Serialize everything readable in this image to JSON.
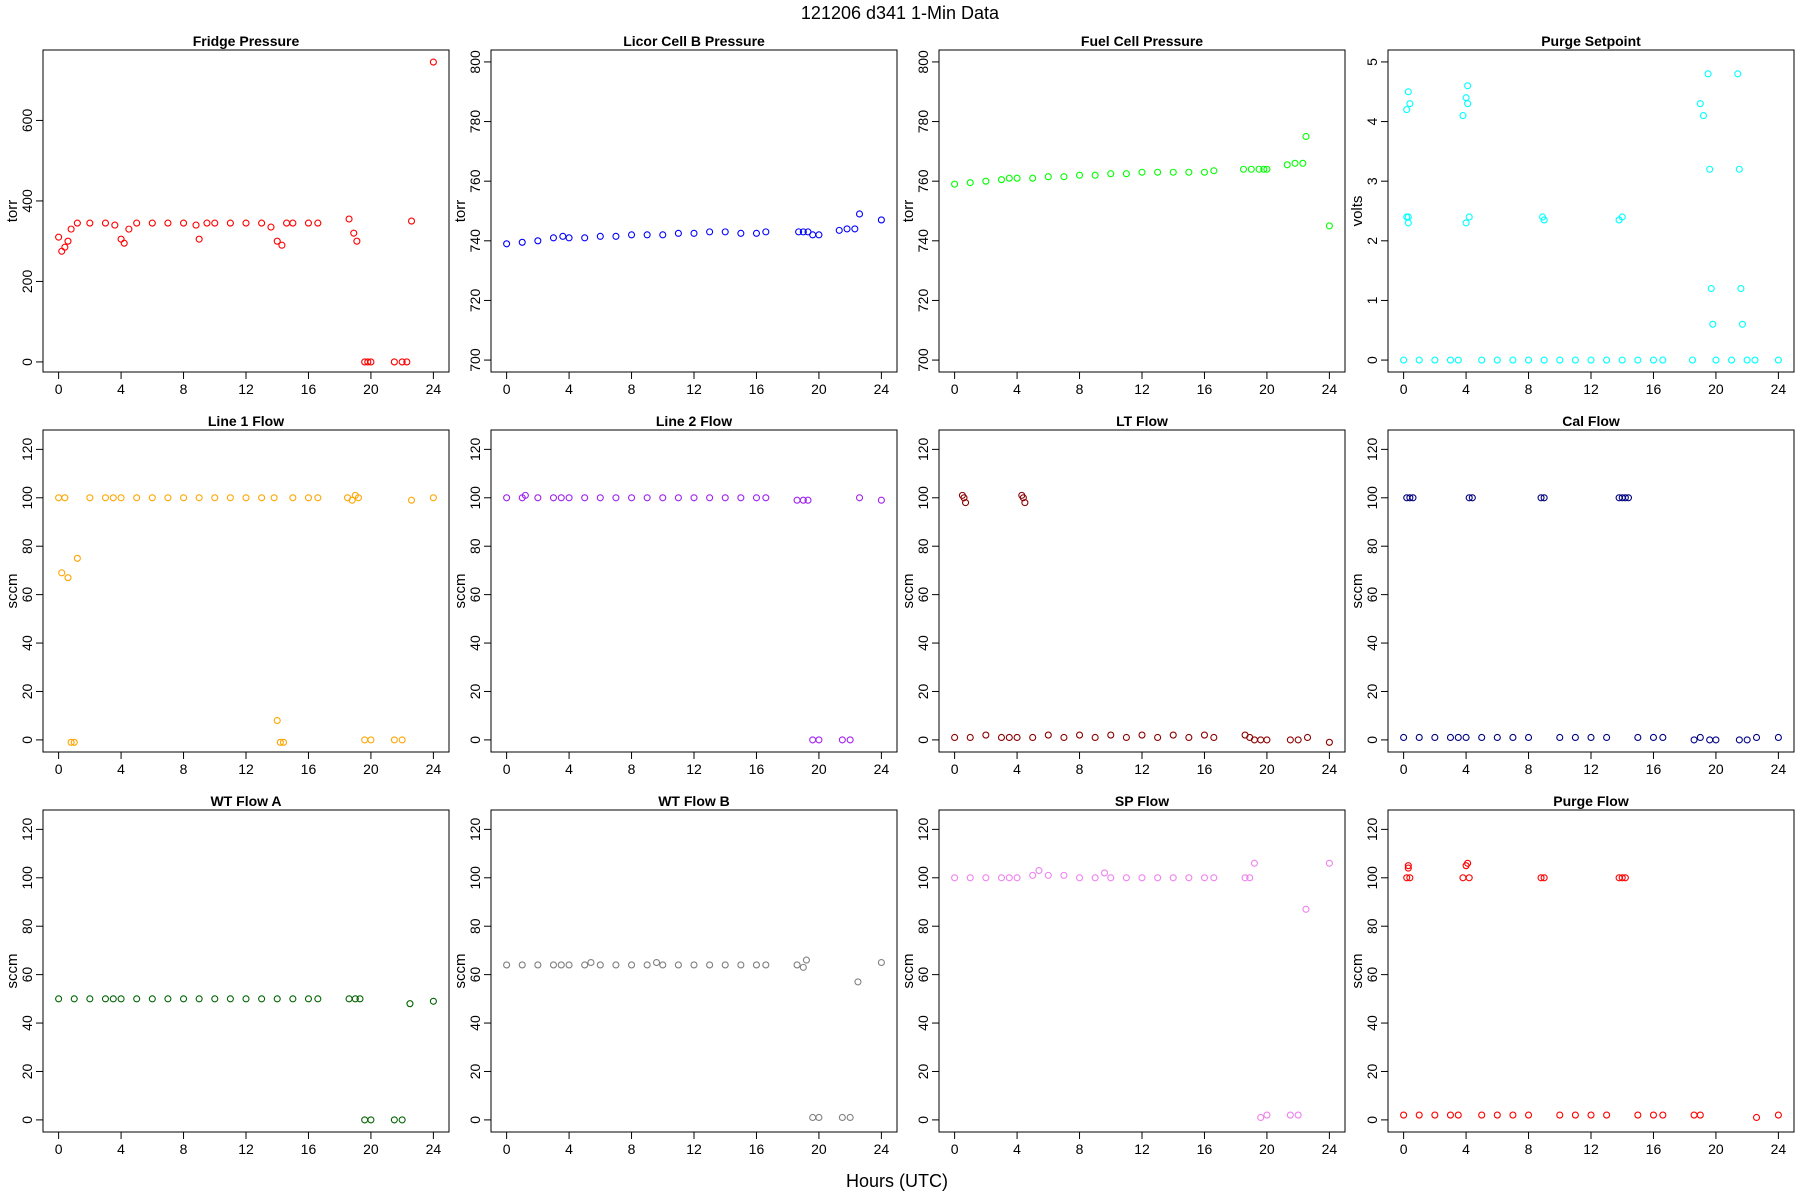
{
  "figure": {
    "title": "121206   d341   1-Min Data",
    "xlabel": "Hours (UTC)"
  },
  "chart_data": [
    {
      "type": "scatter",
      "title": "Fridge Pressure",
      "ylabel": "torr",
      "color": "#ff0000",
      "ylim": [
        -25,
        775
      ],
      "yticks": [
        0,
        200,
        400,
        600
      ],
      "xlim": [
        -1,
        25
      ],
      "series": [
        {
          "x": [
            0,
            0.2,
            0.4,
            0.6,
            0.8,
            1.2,
            2,
            3,
            3.6,
            4,
            4.2,
            4.5,
            5,
            6,
            7,
            8,
            8.8,
            9,
            9.5,
            10,
            11,
            12,
            13,
            13.6,
            14,
            14.3,
            14.6,
            15,
            16,
            16.6,
            18.6,
            18.9,
            19.1,
            19.6,
            19.8,
            20,
            21.5,
            22,
            22.3,
            22.6,
            24
          ],
          "y": [
            310,
            275,
            285,
            300,
            330,
            345,
            345,
            345,
            340,
            305,
            295,
            330,
            345,
            345,
            345,
            345,
            340,
            305,
            345,
            345,
            345,
            345,
            345,
            335,
            300,
            290,
            345,
            345,
            345,
            345,
            355,
            320,
            300,
            0,
            0,
            0,
            0,
            0,
            0,
            350,
            745
          ]
        }
      ]
    },
    {
      "type": "scatter",
      "title": "Licor Cell B Pressure",
      "ylabel": "torr",
      "color": "#0000ff",
      "ylim": [
        696,
        804
      ],
      "yticks": [
        700,
        720,
        740,
        760,
        780,
        800
      ],
      "xlim": [
        -1,
        25
      ],
      "series": [
        {
          "x": [
            0,
            1,
            2,
            3,
            3.6,
            4,
            5,
            6,
            7,
            8,
            9,
            10,
            11,
            12,
            13,
            14,
            15,
            16,
            16.6,
            18.7,
            19,
            19.3,
            19.6,
            20,
            21.3,
            21.8,
            22.3,
            22.6,
            24
          ],
          "y": [
            739,
            739.5,
            740,
            741,
            741.5,
            741,
            741,
            741.5,
            741.5,
            742,
            742,
            742,
            742.5,
            742.5,
            743,
            743,
            742.5,
            742.5,
            743,
            743,
            743,
            743,
            742,
            742,
            743.5,
            744,
            744,
            749,
            747
          ]
        }
      ]
    },
    {
      "type": "scatter",
      "title": "Fuel Cell Pressure",
      "ylabel": "torr",
      "color": "#00ff00",
      "ylim": [
        696,
        804
      ],
      "yticks": [
        700,
        720,
        740,
        760,
        780,
        800
      ],
      "xlim": [
        -1,
        25
      ],
      "series": [
        {
          "x": [
            0,
            1,
            2,
            3,
            3.5,
            4,
            5,
            6,
            7,
            8,
            9,
            10,
            11,
            12,
            13,
            14,
            15,
            16,
            16.6,
            18.5,
            19,
            19.5,
            19.8,
            20,
            21.3,
            21.8,
            22.3,
            22.5,
            24
          ],
          "y": [
            759,
            759.5,
            760,
            760.5,
            761,
            761,
            761,
            761.5,
            761.5,
            762,
            762,
            762.5,
            762.5,
            763,
            763,
            763,
            763,
            763,
            763.5,
            764,
            764,
            764,
            764,
            764,
            765.5,
            766,
            766,
            775,
            745
          ]
        }
      ]
    },
    {
      "type": "scatter",
      "title": "Purge Setpoint",
      "ylabel": "volts",
      "color": "#00ffff",
      "ylim": [
        -0.2,
        5.2
      ],
      "yticks": [
        0,
        1,
        2,
        3,
        4,
        5
      ],
      "xlim": [
        -1,
        25
      ],
      "series": [
        {
          "x": [
            0,
            1,
            2,
            3,
            3.5,
            0.2,
            0.3,
            0.4,
            0.3,
            0.2,
            0.3,
            3.8,
            4,
            4.1,
            4.2,
            4,
            4.1,
            5,
            6,
            7,
            8,
            9,
            10,
            11,
            12,
            13,
            14,
            15,
            16,
            16.6,
            8.9,
            9,
            13.8,
            14,
            18.5,
            19,
            19.2,
            19.5,
            19.6,
            19.7,
            19.8,
            20,
            21,
            21.4,
            21.5,
            21.6,
            21.7,
            22,
            22.5,
            24
          ],
          "y": [
            0,
            0,
            0,
            0,
            0,
            2.4,
            2.4,
            4.3,
            4.5,
            4.2,
            2.3,
            4.1,
            4.4,
            4.6,
            2.4,
            2.3,
            4.3,
            0,
            0,
            0,
            0,
            0,
            0,
            0,
            0,
            0,
            0,
            0,
            0,
            0,
            2.4,
            2.35,
            2.35,
            2.4,
            0,
            4.3,
            4.1,
            4.8,
            3.2,
            1.2,
            0.6,
            0,
            0,
            4.8,
            3.2,
            1.2,
            0.6,
            0,
            0,
            0
          ]
        }
      ]
    },
    {
      "type": "scatter",
      "title": "Line 1 Flow",
      "ylabel": "sccm",
      "color": "#ffa500",
      "ylim": [
        -5,
        128
      ],
      "yticks": [
        0,
        20,
        40,
        60,
        80,
        100,
        120
      ],
      "xlim": [
        -1,
        25
      ],
      "series": [
        {
          "x": [
            0,
            0.2,
            0.4,
            0.6,
            0.8,
            1,
            1.2,
            2,
            3,
            3.5,
            4,
            5,
            6,
            7,
            8,
            9,
            10,
            11,
            12,
            13,
            13.8,
            14,
            14.2,
            14.4,
            15,
            16,
            16.6,
            18.5,
            18.8,
            19,
            19.2,
            19.6,
            20,
            21.5,
            22,
            22.6,
            24
          ],
          "y": [
            100,
            69,
            100,
            67,
            -1,
            -1,
            75,
            100,
            100,
            100,
            100,
            100,
            100,
            100,
            100,
            100,
            100,
            100,
            100,
            100,
            100,
            8,
            -1,
            -1,
            100,
            100,
            100,
            100,
            99,
            101,
            100,
            0,
            0,
            0,
            0,
            99,
            100
          ]
        }
      ]
    },
    {
      "type": "scatter",
      "title": "Line 2 Flow",
      "ylabel": "sccm",
      "color": "#a020f0",
      "ylim": [
        -5,
        128
      ],
      "yticks": [
        0,
        20,
        40,
        60,
        80,
        100,
        120
      ],
      "xlim": [
        -1,
        25
      ],
      "series": [
        {
          "x": [
            0,
            1,
            1.2,
            2,
            3,
            3.5,
            4,
            5,
            6,
            7,
            8,
            9,
            10,
            11,
            12,
            13,
            14,
            15,
            16,
            16.6,
            18.6,
            19,
            19.3,
            19.6,
            20,
            21.5,
            22,
            22.6,
            24
          ],
          "y": [
            100,
            100,
            101,
            100,
            100,
            100,
            100,
            100,
            100,
            100,
            100,
            100,
            100,
            100,
            100,
            100,
            100,
            100,
            100,
            100,
            99,
            99,
            99,
            0,
            0,
            0,
            0,
            100,
            99
          ]
        }
      ]
    },
    {
      "type": "scatter",
      "title": "LT Flow",
      "ylabel": "sccm",
      "color": "#8b0000",
      "ylim": [
        -5,
        128
      ],
      "yticks": [
        0,
        20,
        40,
        60,
        80,
        100,
        120
      ],
      "xlim": [
        -1,
        25
      ],
      "series": [
        {
          "x": [
            0,
            0.5,
            0.6,
            0.7,
            1,
            2,
            3,
            3.5,
            4,
            4.3,
            4.4,
            4.5,
            5,
            6,
            7,
            8,
            9,
            10,
            11,
            12,
            13,
            14,
            15,
            16,
            16.6,
            18.6,
            18.9,
            19.2,
            19.6,
            20,
            21.5,
            22,
            22.6,
            24
          ],
          "y": [
            1,
            101,
            100,
            98,
            1,
            2,
            1,
            1,
            1,
            101,
            100,
            98,
            1,
            2,
            1,
            2,
            1,
            2,
            1,
            2,
            1,
            2,
            1,
            2,
            1,
            2,
            1,
            0,
            0,
            0,
            0,
            0,
            1,
            -1
          ]
        }
      ]
    },
    {
      "type": "scatter",
      "title": "Cal Flow",
      "ylabel": "sccm",
      "color": "#000080",
      "ylim": [
        -5,
        128
      ],
      "yticks": [
        0,
        20,
        40,
        60,
        80,
        100,
        120
      ],
      "xlim": [
        -1,
        25
      ],
      "series": [
        {
          "x": [
            0,
            0.2,
            0.4,
            0.6,
            1,
            2,
            3,
            3.5,
            4,
            4.2,
            4.4,
            5,
            6,
            7,
            8,
            8.8,
            9,
            10,
            11,
            12,
            13,
            13.8,
            14,
            14.2,
            14.4,
            15,
            16,
            16.6,
            18.6,
            19,
            19.6,
            20,
            21.5,
            22,
            22.6,
            24
          ],
          "y": [
            1,
            100,
            100,
            100,
            1,
            1,
            1,
            1,
            1,
            100,
            100,
            1,
            1,
            1,
            1,
            100,
            100,
            1,
            1,
            1,
            1,
            100,
            100,
            100,
            100,
            1,
            1,
            1,
            0,
            1,
            0,
            0,
            0,
            0,
            1,
            1
          ]
        }
      ]
    },
    {
      "type": "scatter",
      "title": "WT Flow A",
      "ylabel": "sccm",
      "color": "#006400",
      "ylim": [
        -5,
        128
      ],
      "yticks": [
        0,
        20,
        40,
        60,
        80,
        100,
        120
      ],
      "xlim": [
        -1,
        25
      ],
      "series": [
        {
          "x": [
            0,
            1,
            2,
            3,
            3.5,
            4,
            5,
            6,
            7,
            8,
            9,
            10,
            11,
            12,
            13,
            14,
            15,
            16,
            16.6,
            18.6,
            19,
            19.3,
            19.6,
            20,
            21.5,
            22,
            22.5,
            24
          ],
          "y": [
            50,
            50,
            50,
            50,
            50,
            50,
            50,
            50,
            50,
            50,
            50,
            50,
            50,
            50,
            50,
            50,
            50,
            50,
            50,
            50,
            50,
            50,
            0,
            0,
            0,
            0,
            48,
            49
          ]
        }
      ]
    },
    {
      "type": "scatter",
      "title": "WT Flow B",
      "ylabel": "sccm",
      "color": "#808080",
      "ylim": [
        -5,
        128
      ],
      "yticks": [
        0,
        20,
        40,
        60,
        80,
        100,
        120
      ],
      "xlim": [
        -1,
        25
      ],
      "series": [
        {
          "x": [
            0,
            1,
            2,
            3,
            3.5,
            4,
            5,
            5.4,
            6,
            7,
            8,
            9,
            9.6,
            10,
            11,
            12,
            13,
            14,
            15,
            16,
            16.6,
            18.6,
            19,
            19.2,
            19.6,
            20,
            21.5,
            22,
            22.5,
            24
          ],
          "y": [
            64,
            64,
            64,
            64,
            64,
            64,
            64,
            65,
            64,
            64,
            64,
            64,
            65,
            64,
            64,
            64,
            64,
            64,
            64,
            64,
            64,
            64,
            63,
            66,
            1,
            1,
            1,
            1,
            57,
            65
          ]
        }
      ]
    },
    {
      "type": "scatter",
      "title": "SP Flow",
      "ylabel": "sccm",
      "color": "#ee82ee",
      "ylim": [
        -5,
        128
      ],
      "yticks": [
        0,
        20,
        40,
        60,
        80,
        100,
        120
      ],
      "xlim": [
        -1,
        25
      ],
      "series": [
        {
          "x": [
            0,
            1,
            2,
            3,
            3.5,
            4,
            5,
            5.4,
            6,
            7,
            8,
            9,
            9.6,
            10,
            11,
            12,
            13,
            14,
            15,
            16,
            16.6,
            18.6,
            18.9,
            19.2,
            19.6,
            20,
            21.5,
            22,
            22.5,
            24
          ],
          "y": [
            100,
            100,
            100,
            100,
            100,
            100,
            101,
            103,
            101,
            101,
            100,
            100,
            102,
            100,
            100,
            100,
            100,
            100,
            100,
            100,
            100,
            100,
            100,
            106,
            1,
            2,
            2,
            2,
            87,
            106
          ]
        }
      ]
    },
    {
      "type": "scatter",
      "title": "Purge Flow",
      "ylabel": "sccm",
      "color": "#ff0000",
      "ylim": [
        -5,
        128
      ],
      "yticks": [
        0,
        20,
        40,
        60,
        80,
        100,
        120
      ],
      "xlim": [
        -1,
        25
      ],
      "series": [
        {
          "x": [
            0,
            0.2,
            0.3,
            0.4,
            0.3,
            1,
            2,
            3,
            3.5,
            3.8,
            4,
            4.2,
            4.1,
            5,
            6,
            7,
            8,
            8.8,
            9,
            10,
            11,
            12,
            13,
            13.8,
            14,
            14.2,
            15,
            16,
            16.6,
            18.6,
            19,
            22.6,
            24
          ],
          "y": [
            2,
            100,
            105,
            100,
            104,
            2,
            2,
            2,
            2,
            100,
            105,
            100,
            106,
            2,
            2,
            2,
            2,
            100,
            100,
            2,
            2,
            2,
            2,
            100,
            100,
            100,
            2,
            2,
            2,
            2,
            2,
            1,
            2
          ]
        }
      ]
    }
  ]
}
